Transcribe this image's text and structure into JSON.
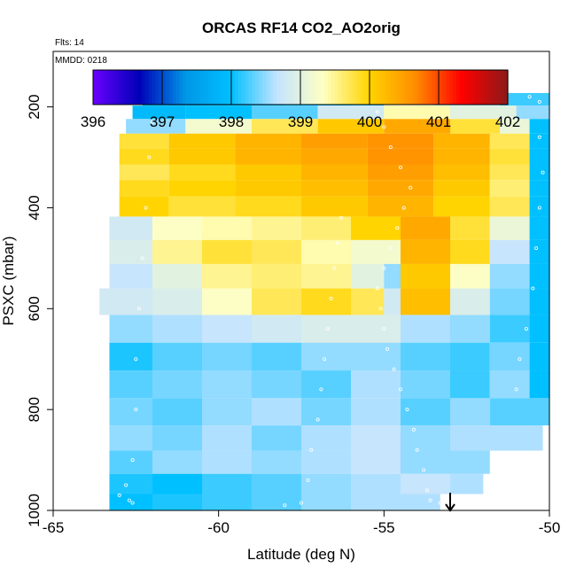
{
  "chart_data": {
    "type": "heatmap",
    "title": "ORCAS RF14 CO2_AO2orig",
    "annotations": {
      "flights": "Flts: 14",
      "date": "MMDD: 0218"
    },
    "xlabel": "Latitude (deg N)",
    "ylabel": "PSXC (mbar)",
    "xlim": [
      -65,
      -50
    ],
    "ylim": [
      1000,
      90
    ],
    "y_reversed": true,
    "xticks": [
      -65,
      -60,
      -55,
      -50
    ],
    "yticks": [
      200,
      400,
      600,
      800,
      1000
    ],
    "colorbar": {
      "min": 396,
      "max": 402,
      "ticks": [
        396,
        397,
        398,
        399,
        400,
        401,
        402
      ],
      "placement": "top inside plot"
    },
    "layers": [
      {
        "p": 185,
        "lat_min": -62.3,
        "lat_max": -50,
        "cells": [
          [
            -62.3,
            397.8
          ],
          [
            -61.5,
            397.5
          ],
          [
            -60.0,
            397.7
          ],
          [
            -58.0,
            397.9
          ],
          [
            -56.0,
            398.1
          ],
          [
            -55.0,
            399.0
          ],
          [
            -53.5,
            398.6
          ],
          [
            -51.5,
            398.2
          ]
        ]
      },
      {
        "p": 210,
        "lat_min": -62.6,
        "lat_max": -50,
        "cells": [
          [
            -62.6,
            397.9
          ],
          [
            -61.0,
            398.0
          ],
          [
            -59.0,
            398.3
          ],
          [
            -57.0,
            398.8
          ],
          [
            -55.0,
            399.4
          ],
          [
            -53.0,
            399.0
          ],
          [
            -51.0,
            398.5
          ]
        ]
      },
      {
        "p": 238,
        "lat_min": -62.8,
        "lat_max": -50,
        "cells": [
          [
            -62.8,
            398.5
          ],
          [
            -61.0,
            399.2
          ],
          [
            -59.0,
            399.7
          ],
          [
            -57.0,
            400.1
          ],
          [
            -55.0,
            400.4
          ],
          [
            -53.0,
            399.8
          ],
          [
            -51.5,
            399.1
          ],
          [
            -50.6,
            398.0
          ]
        ]
      },
      {
        "p": 268,
        "lat_min": -63.0,
        "lat_max": -50,
        "cells": [
          [
            -63.0,
            399.8
          ],
          [
            -61.5,
            400.1
          ],
          [
            -59.5,
            400.3
          ],
          [
            -57.5,
            400.5
          ],
          [
            -55.5,
            400.6
          ],
          [
            -53.5,
            400.3
          ],
          [
            -51.8,
            399.7
          ],
          [
            -50.6,
            398.0
          ]
        ]
      },
      {
        "p": 298,
        "lat_min": -63.0,
        "lat_max": -50,
        "cells": [
          [
            -63.0,
            399.9
          ],
          [
            -61.5,
            400.1
          ],
          [
            -59.5,
            400.3
          ],
          [
            -57.5,
            400.4
          ],
          [
            -55.5,
            400.6
          ],
          [
            -53.5,
            400.3
          ],
          [
            -51.8,
            399.8
          ],
          [
            -50.6,
            398.0
          ]
        ]
      },
      {
        "p": 330,
        "lat_min": -63.0,
        "lat_max": -50,
        "cells": [
          [
            -63.0,
            399.7
          ],
          [
            -61.5,
            399.9
          ],
          [
            -59.5,
            400.1
          ],
          [
            -57.5,
            400.3
          ],
          [
            -55.5,
            400.5
          ],
          [
            -53.5,
            400.2
          ],
          [
            -51.8,
            399.7
          ],
          [
            -50.6,
            398.0
          ]
        ]
      },
      {
        "p": 360,
        "lat_min": -63.0,
        "lat_max": -50,
        "cells": [
          [
            -63.0,
            399.9
          ],
          [
            -61.5,
            400.0
          ],
          [
            -59.5,
            400.1
          ],
          [
            -57.5,
            400.2
          ],
          [
            -55.5,
            400.4
          ],
          [
            -53.5,
            400.1
          ],
          [
            -51.8,
            399.6
          ],
          [
            -50.6,
            398.0
          ]
        ]
      },
      {
        "p": 395,
        "lat_min": -63.0,
        "lat_max": -50,
        "cells": [
          [
            -63.0,
            400.0
          ],
          [
            -61.5,
            399.8
          ],
          [
            -59.5,
            399.9
          ],
          [
            -57.5,
            400.1
          ],
          [
            -55.5,
            400.3
          ],
          [
            -53.5,
            400.0
          ],
          [
            -51.8,
            399.7
          ],
          [
            -50.6,
            398.0
          ]
        ]
      },
      {
        "p": 440,
        "lat_min": -63.3,
        "lat_max": -50,
        "cells": [
          [
            -63.3,
            398.8
          ],
          [
            -62.0,
            399.3
          ],
          [
            -60.5,
            399.4
          ],
          [
            -59.0,
            399.5
          ],
          [
            -57.5,
            399.6
          ],
          [
            -56.0,
            400.0
          ],
          [
            -54.5,
            400.4
          ],
          [
            -53.0,
            399.8
          ],
          [
            -51.8,
            399.1
          ],
          [
            -50.6,
            398.0
          ]
        ]
      },
      {
        "p": 488,
        "lat_min": -63.3,
        "lat_max": -50,
        "cells": [
          [
            -63.3,
            398.9
          ],
          [
            -62.0,
            399.5
          ],
          [
            -60.5,
            399.8
          ],
          [
            -59.0,
            399.7
          ],
          [
            -57.5,
            399.4
          ],
          [
            -56.0,
            399.2
          ],
          [
            -54.5,
            400.3
          ],
          [
            -53.0,
            399.9
          ],
          [
            -51.8,
            398.7
          ],
          [
            -50.6,
            398.0
          ]
        ]
      },
      {
        "p": 535,
        "lat_min": -63.3,
        "lat_max": -50,
        "cells": [
          [
            -63.3,
            398.7
          ],
          [
            -62.0,
            399.0
          ],
          [
            -60.5,
            399.5
          ],
          [
            -59.0,
            399.6
          ],
          [
            -57.5,
            399.5
          ],
          [
            -56.0,
            399.0
          ],
          [
            -55.0,
            398.5
          ],
          [
            -54.5,
            400.1
          ],
          [
            -53.0,
            399.3
          ],
          [
            -51.8,
            398.5
          ],
          [
            -50.6,
            398.0
          ]
        ]
      },
      {
        "p": 585,
        "lat_min": -63.6,
        "lat_max": -50,
        "cells": [
          [
            -63.6,
            398.8
          ],
          [
            -62.0,
            398.9
          ],
          [
            -60.5,
            399.3
          ],
          [
            -59.0,
            399.7
          ],
          [
            -57.5,
            399.9
          ],
          [
            -56.0,
            399.7
          ],
          [
            -55.0,
            398.8
          ],
          [
            -54.5,
            400.2
          ],
          [
            -53.0,
            398.9
          ],
          [
            -51.8,
            398.4
          ],
          [
            -50.6,
            398.0
          ]
        ]
      },
      {
        "p": 640,
        "lat_min": -63.3,
        "lat_max": -50,
        "cells": [
          [
            -63.3,
            398.5
          ],
          [
            -62.0,
            398.6
          ],
          [
            -60.5,
            398.7
          ],
          [
            -59.0,
            398.8
          ],
          [
            -57.5,
            398.9
          ],
          [
            -56.0,
            398.9
          ],
          [
            -54.5,
            398.6
          ],
          [
            -53.0,
            398.5
          ],
          [
            -51.8,
            398.2
          ],
          [
            -50.6,
            398.0
          ]
        ]
      },
      {
        "p": 695,
        "lat_min": -63.3,
        "lat_max": -50,
        "cells": [
          [
            -63.3,
            398.1
          ],
          [
            -62.0,
            398.3
          ],
          [
            -60.5,
            398.4
          ],
          [
            -59.0,
            398.3
          ],
          [
            -57.5,
            398.5
          ],
          [
            -56.0,
            398.5
          ],
          [
            -54.5,
            398.3
          ],
          [
            -53.0,
            398.2
          ],
          [
            -51.8,
            398.4
          ],
          [
            -50.6,
            398.0
          ]
        ]
      },
      {
        "p": 750,
        "lat_min": -63.3,
        "lat_max": -50,
        "cells": [
          [
            -63.3,
            398.3
          ],
          [
            -62.0,
            398.4
          ],
          [
            -60.5,
            398.5
          ],
          [
            -59.0,
            398.4
          ],
          [
            -57.5,
            398.3
          ],
          [
            -56.0,
            398.6
          ],
          [
            -54.5,
            398.4
          ],
          [
            -53.0,
            398.2
          ],
          [
            -51.8,
            398.5
          ],
          [
            -50.6,
            398.0
          ]
        ]
      },
      {
        "p": 805,
        "lat_min": -63.3,
        "lat_max": -50,
        "cells": [
          [
            -63.3,
            398.4
          ],
          [
            -62.0,
            398.3
          ],
          [
            -60.5,
            398.5
          ],
          [
            -59.0,
            398.6
          ],
          [
            -57.5,
            398.4
          ],
          [
            -56.0,
            398.6
          ],
          [
            -54.5,
            398.3
          ],
          [
            -53.0,
            398.5
          ],
          [
            -51.8,
            398.3
          ]
        ]
      },
      {
        "p": 858,
        "lat_min": -63.3,
        "lat_max": -50.2,
        "cells": [
          [
            -63.3,
            398.5
          ],
          [
            -62.0,
            398.4
          ],
          [
            -60.5,
            398.6
          ],
          [
            -59.0,
            398.4
          ],
          [
            -57.5,
            398.6
          ],
          [
            -56.0,
            398.7
          ],
          [
            -54.5,
            398.5
          ],
          [
            -53.0,
            398.6
          ]
        ]
      },
      {
        "p": 905,
        "lat_min": -63.3,
        "lat_max": -51.8,
        "cells": [
          [
            -63.3,
            398.3
          ],
          [
            -62.0,
            398.5
          ],
          [
            -60.5,
            398.6
          ],
          [
            -59.0,
            398.5
          ],
          [
            -57.5,
            398.6
          ],
          [
            -56.0,
            398.7
          ],
          [
            -54.5,
            398.5
          ],
          [
            -53.0,
            398.5
          ]
        ]
      },
      {
        "p": 950,
        "lat_min": -63.3,
        "lat_max": -52.0,
        "cells": [
          [
            -63.3,
            398.1
          ],
          [
            -62.0,
            398.0
          ],
          [
            -60.5,
            398.2
          ],
          [
            -59.0,
            398.3
          ],
          [
            -57.5,
            398.5
          ],
          [
            -56.0,
            398.6
          ],
          [
            -54.5,
            398.7
          ],
          [
            -53.0,
            398.6
          ]
        ]
      },
      {
        "p": 985,
        "lat_min": -63.3,
        "lat_max": -53.3,
        "cells": [
          [
            -63.3,
            398.0
          ],
          [
            -62.0,
            398.1
          ],
          [
            -60.5,
            398.2
          ],
          [
            -59.0,
            398.3
          ],
          [
            -57.5,
            398.5
          ],
          [
            -56.0,
            398.6
          ],
          [
            -54.5,
            398.6
          ]
        ]
      }
    ],
    "flight_track": [
      [
        -53.1,
        990
      ],
      [
        -53.3,
        985
      ],
      [
        -53.6,
        980
      ],
      [
        -53.7,
        960
      ],
      [
        -53.8,
        920
      ],
      [
        -54.0,
        880
      ],
      [
        -54.1,
        840
      ],
      [
        -54.3,
        800
      ],
      [
        -54.5,
        760
      ],
      [
        -54.7,
        720
      ],
      [
        -54.9,
        680
      ],
      [
        -55.0,
        640
      ],
      [
        -55.1,
        600
      ],
      [
        -55.2,
        560
      ],
      [
        -55.0,
        520
      ],
      [
        -54.8,
        480
      ],
      [
        -54.6,
        440
      ],
      [
        -54.4,
        400
      ],
      [
        -54.2,
        360
      ],
      [
        -54.5,
        320
      ],
      [
        -54.8,
        280
      ],
      [
        -55.0,
        240
      ],
      [
        -55.2,
        210
      ],
      [
        -55.6,
        190
      ],
      [
        -56.5,
        180
      ],
      [
        -58.0,
        180
      ],
      [
        -59.5,
        180
      ],
      [
        -60.5,
        180
      ],
      [
        -61.0,
        180
      ],
      [
        -61.5,
        182
      ],
      [
        -61.8,
        190
      ],
      [
        -62.0,
        230
      ],
      [
        -62.1,
        300
      ],
      [
        -62.2,
        400
      ],
      [
        -62.3,
        500
      ],
      [
        -62.4,
        600
      ],
      [
        -62.5,
        700
      ],
      [
        -62.5,
        800
      ],
      [
        -62.6,
        900
      ],
      [
        -62.8,
        950
      ],
      [
        -63.0,
        970
      ],
      [
        -62.7,
        980
      ],
      [
        -62.6,
        985
      ],
      [
        -58.0,
        990
      ],
      [
        -57.5,
        985
      ],
      [
        -57.3,
        940
      ],
      [
        -57.2,
        880
      ],
      [
        -57.0,
        820
      ],
      [
        -56.9,
        760
      ],
      [
        -56.8,
        700
      ],
      [
        -56.7,
        640
      ],
      [
        -56.6,
        580
      ],
      [
        -56.5,
        520
      ],
      [
        -56.4,
        470
      ],
      [
        -56.3,
        420
      ],
      [
        -52.5,
        180
      ],
      [
        -51.5,
        180
      ],
      [
        -50.6,
        180
      ],
      [
        -50.3,
        190
      ],
      [
        -50.3,
        260
      ],
      [
        -50.2,
        330
      ],
      [
        -50.3,
        400
      ],
      [
        -50.4,
        480
      ],
      [
        -50.5,
        560
      ],
      [
        -50.7,
        640
      ],
      [
        -50.9,
        700
      ],
      [
        -51.0,
        760
      ]
    ]
  },
  "colors": {
    "colorbar_stops": [
      "#6a00ff",
      "#0000b8",
      "#0096e6",
      "#00c0ff",
      "#c4e4ff",
      "#ffffc2",
      "#ffd400",
      "#ff8c00",
      "#ff0000",
      "#8b1a1a"
    ],
    "track": "#ffffff"
  },
  "marker": {
    "icon": "down-arrow-icon",
    "lat": -53.0
  }
}
